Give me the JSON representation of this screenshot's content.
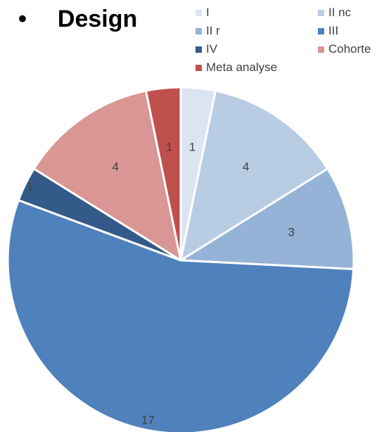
{
  "slide": {
    "bullet": "•",
    "heading": "Design"
  },
  "chart_data": {
    "type": "pie",
    "title": "",
    "categories": [
      "I",
      "II nc",
      "II r",
      "III",
      "IV",
      "Cohorte",
      "Meta analyse"
    ],
    "values": [
      1,
      4,
      3,
      17,
      1,
      4,
      1
    ],
    "colors": [
      "#dbe4f1",
      "#b8cce4",
      "#95b3d7",
      "#4f81bd",
      "#345a8a",
      "#d99694",
      "#c0504d"
    ],
    "data_labels": [
      "1",
      "4",
      "3",
      "17",
      "1",
      "4",
      "1"
    ],
    "legend_position": "top-right",
    "start_angle": "12 o'clock, clockwise"
  }
}
